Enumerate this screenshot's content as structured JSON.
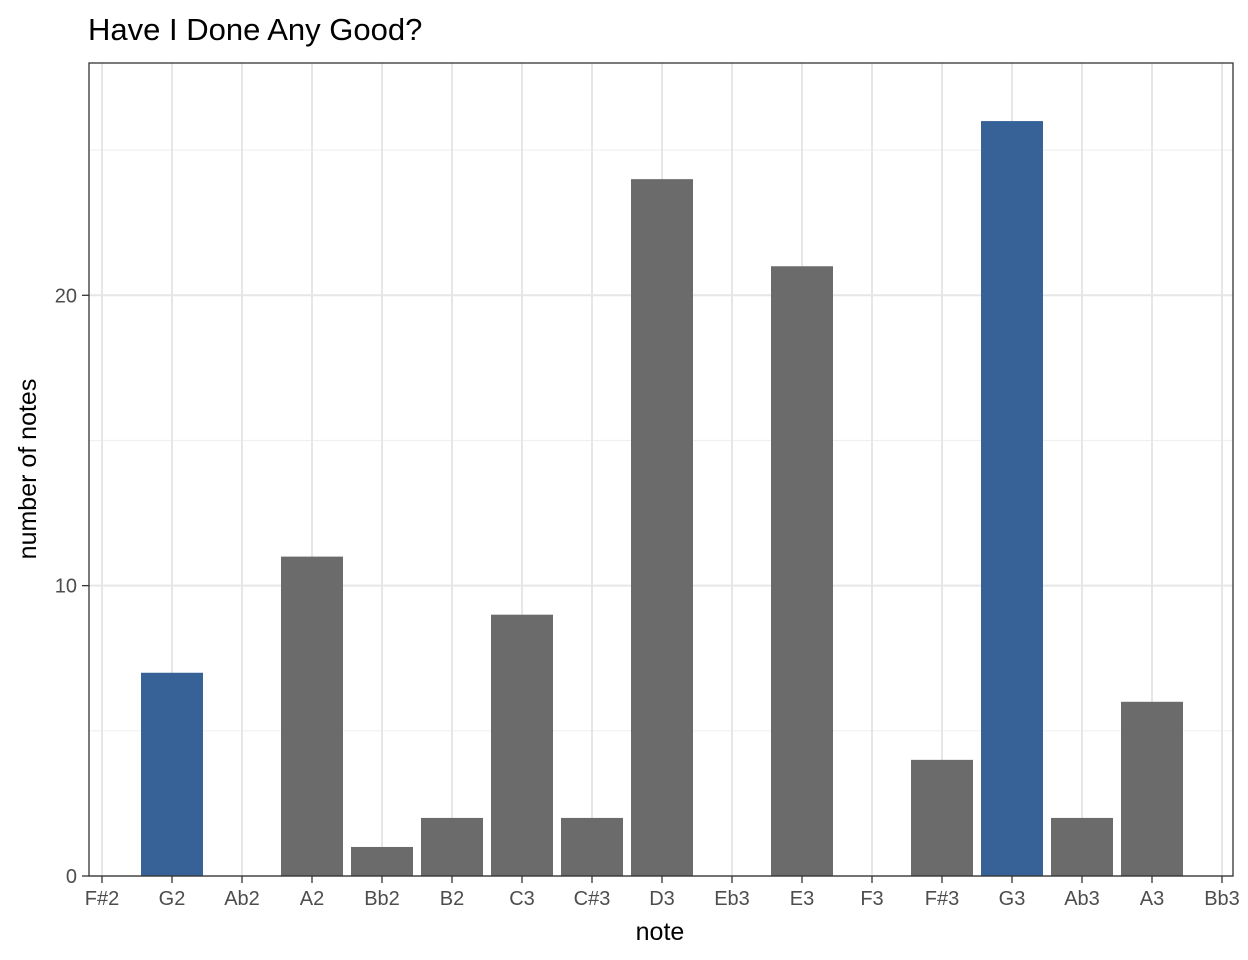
{
  "chart_data": {
    "type": "bar",
    "title": "Have I Done Any Good?",
    "xlabel": "note",
    "ylabel": "number of notes",
    "categories": [
      "F#2",
      "G2",
      "Ab2",
      "A2",
      "Bb2",
      "B2",
      "C3",
      "C#3",
      "D3",
      "Eb3",
      "E3",
      "F3",
      "F#3",
      "G3",
      "Ab3",
      "A3",
      "Bb3"
    ],
    "values": [
      0,
      7,
      0,
      11,
      1,
      2,
      9,
      2,
      24,
      0,
      21,
      0,
      4,
      26,
      2,
      6,
      0
    ],
    "highlighted": [
      "G2",
      "G3"
    ],
    "colors": {
      "default": "#6b6b6b",
      "highlight": "#376298"
    },
    "yticks": [
      0,
      10,
      20
    ],
    "ylim": [
      0,
      28
    ],
    "grid": true,
    "legend": "none"
  }
}
